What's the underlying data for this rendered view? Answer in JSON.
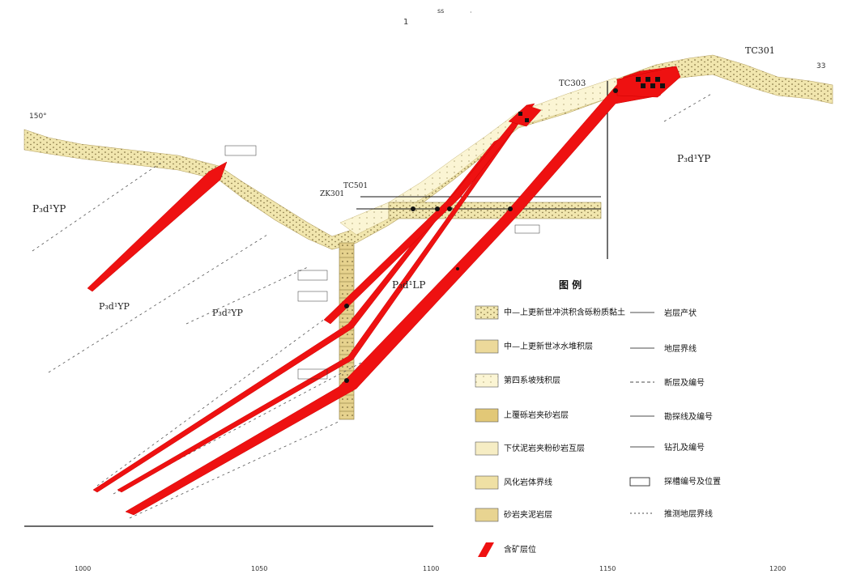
{
  "top_mark": "1",
  "title_marks": [
    "ss",
    "·"
  ],
  "hole_labels": {
    "top_right": "TC301",
    "mid_right": "TC303",
    "center": "TC501",
    "center_alt": "ZK301",
    "left_top": "150°",
    "right_edge": "33"
  },
  "unit_labels": [
    {
      "id": "unit-right",
      "text": "P₃d¹YP"
    },
    {
      "id": "unit-left",
      "text": "P₃d¹YP"
    },
    {
      "id": "unit-center",
      "text": "P₃d¹LP"
    },
    {
      "id": "unit-lower-left",
      "text": "P₃d¹YP"
    },
    {
      "id": "unit-lower-mid",
      "text": "P₃d²YP"
    }
  ],
  "scale_ticks": [
    "1000",
    "1050",
    "1100",
    "1150",
    "1200"
  ],
  "legend": {
    "title": "图  例",
    "left_items": [
      "中—上更新世冲洪积含砾粉质黏土",
      "中—上更新世冰水堆积层",
      "第四系坡残积层",
      "上覆砾岩夹砂岩层",
      "下伏泥岩夹粉砂岩互层",
      "风化岩体界线",
      "砂岩夹泥岩层",
      "含矿层位"
    ],
    "right_items": [
      "岩层产状",
      "地层界线",
      "断层及编号",
      "勘探线及编号",
      "钻孔及编号",
      "探槽编号及位置",
      "推测地层界线"
    ]
  },
  "colors": {
    "ore_red": "#ee1111",
    "sand_fill": "#f2e7b0",
    "sand_dark": "#e2cf8a",
    "pale_fill": "#fbf6d8",
    "tan_fill": "#e8d491"
  }
}
